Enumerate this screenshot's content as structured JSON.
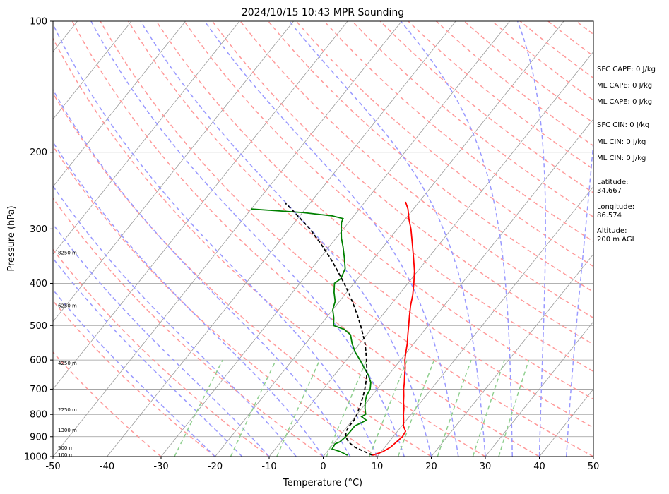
{
  "chart_data": {
    "type": "line",
    "title": "2024/10/15 10:43 MPR Sounding",
    "xlabel": "Temperature (°C)",
    "ylabel": "Pressure (hPa)",
    "xlim": [
      -50,
      50
    ],
    "ylim": [
      1000,
      100
    ],
    "y_scale": "log",
    "x_ticks": [
      -50,
      -40,
      -30,
      -20,
      -10,
      0,
      10,
      20,
      30,
      40,
      50
    ],
    "y_ticks": [
      1000,
      900,
      800,
      700,
      600,
      500,
      400,
      300,
      200,
      100
    ],
    "grid": true,
    "altitude_labels": [
      {
        "label": "100 m",
        "p": 990
      },
      {
        "label": "500 m",
        "p": 955
      },
      {
        "label": "1300 m",
        "p": 870
      },
      {
        "label": "2250 m",
        "p": 780
      },
      {
        "label": "4250 m",
        "p": 610
      },
      {
        "label": "6250 m",
        "p": 450
      },
      {
        "label": "8250 m",
        "p": 340
      }
    ],
    "series": [
      {
        "role": "temperature",
        "color": "#ff0000",
        "points": [
          [
            993,
            8.9
          ],
          [
            975,
            10.3
          ],
          [
            950,
            11.1
          ],
          [
            925,
            11.4
          ],
          [
            900,
            11.7
          ],
          [
            875,
            11.5
          ],
          [
            850,
            10.3
          ],
          [
            825,
            9.5
          ],
          [
            800,
            8.6
          ],
          [
            775,
            7.8
          ],
          [
            750,
            6.8
          ],
          [
            725,
            5.9
          ],
          [
            700,
            4.9
          ],
          [
            675,
            4.0
          ],
          [
            650,
            3.0
          ],
          [
            625,
            2.0
          ],
          [
            600,
            0.8
          ],
          [
            575,
            -0.2
          ],
          [
            550,
            -1.2
          ],
          [
            525,
            -2.4
          ],
          [
            500,
            -3.6
          ],
          [
            475,
            -4.9
          ],
          [
            450,
            -6.2
          ],
          [
            425,
            -7.4
          ],
          [
            400,
            -8.9
          ],
          [
            375,
            -10.6
          ],
          [
            350,
            -12.7
          ],
          [
            325,
            -15.0
          ],
          [
            300,
            -17.5
          ],
          [
            285,
            -19.3
          ],
          [
            270,
            -21.0
          ],
          [
            260,
            -22.5
          ]
        ]
      },
      {
        "role": "dewpoint",
        "color": "#008000",
        "points": [
          [
            993,
            4.3
          ],
          [
            975,
            2.5
          ],
          [
            960,
            0.5
          ],
          [
            945,
            0.4
          ],
          [
            935,
            0.3
          ],
          [
            925,
            0.9
          ],
          [
            900,
            1.2
          ],
          [
            875,
            1.3
          ],
          [
            850,
            1.3
          ],
          [
            825,
            2.6
          ],
          [
            810,
            1.2
          ],
          [
            800,
            1.6
          ],
          [
            775,
            0.6
          ],
          [
            750,
            -0.3
          ],
          [
            725,
            -1.0
          ],
          [
            700,
            -1.3
          ],
          [
            675,
            -2.2
          ],
          [
            650,
            -3.7
          ],
          [
            625,
            -5.6
          ],
          [
            600,
            -7.5
          ],
          [
            575,
            -9.6
          ],
          [
            550,
            -11.4
          ],
          [
            525,
            -13.0
          ],
          [
            510,
            -15.0
          ],
          [
            500,
            -17.5
          ],
          [
            480,
            -18.6
          ],
          [
            460,
            -20.0
          ],
          [
            440,
            -20.8
          ],
          [
            420,
            -22.3
          ],
          [
            400,
            -23.6
          ],
          [
            390,
            -23.1
          ],
          [
            370,
            -23.8
          ],
          [
            350,
            -25.5
          ],
          [
            330,
            -27.4
          ],
          [
            315,
            -29.0
          ],
          [
            300,
            -30.4
          ],
          [
            290,
            -31.3
          ],
          [
            284,
            -31.6
          ],
          [
            280,
            -34.0
          ],
          [
            275,
            -40.0
          ],
          [
            270,
            -50.0
          ]
        ]
      },
      {
        "role": "parcel-profile",
        "color": "#000000",
        "dashed": true,
        "points": [
          [
            993,
            8.9
          ],
          [
            975,
            7.0
          ],
          [
            950,
            4.3
          ],
          [
            925,
            2.5
          ],
          [
            900,
            1.2
          ],
          [
            875,
            0.5
          ],
          [
            850,
            0.3
          ],
          [
            825,
            0.3
          ],
          [
            800,
            0.0
          ],
          [
            775,
            -0.5
          ],
          [
            750,
            -1.0
          ],
          [
            725,
            -1.6
          ],
          [
            700,
            -2.3
          ],
          [
            675,
            -3.1
          ],
          [
            650,
            -4.0
          ],
          [
            625,
            -5.1
          ],
          [
            600,
            -6.3
          ],
          [
            575,
            -7.6
          ],
          [
            550,
            -9.0
          ],
          [
            525,
            -10.7
          ],
          [
            500,
            -12.5
          ],
          [
            475,
            -14.5
          ],
          [
            450,
            -16.7
          ],
          [
            425,
            -19.1
          ],
          [
            400,
            -21.8
          ],
          [
            375,
            -24.8
          ],
          [
            350,
            -28.1
          ],
          [
            325,
            -31.9
          ],
          [
            300,
            -36.2
          ],
          [
            285,
            -39.3
          ],
          [
            270,
            -42.6
          ],
          [
            262,
            -44.5
          ]
        ]
      }
    ],
    "background_lines": {
      "isotherm_color": "#999999",
      "dry_adiabat_color": "#ff9999",
      "moist_adiabat_color": "#9999ff",
      "mixing_ratio_color": "#8fcf8f"
    }
  },
  "side_info": {
    "sfc_cape": "SFC CAPE: 0 J/kg",
    "ml_cape_1": "ML CAPE: 0 J/kg",
    "ml_cape_2": "ML CAPE: 0 J/kg",
    "sfc_cin": "SFC CIN: 0 J/kg",
    "ml_cin_1": "ML CIN: 0 J/kg",
    "ml_cin_2": "ML CIN: 0 J/kg",
    "latitude": "Latitude:\n34.667",
    "longitude": "Longitude:\n86.574",
    "altitude": "Altitude:\n200 m AGL"
  }
}
